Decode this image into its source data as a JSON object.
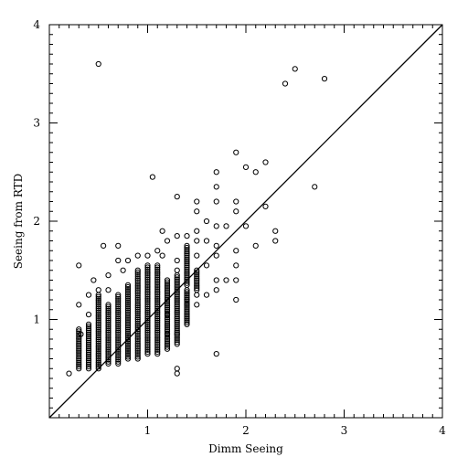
{
  "chart_data": {
    "type": "scatter",
    "title": "",
    "xlabel": "Dimm Seeing",
    "ylabel": "Seeing from RTD",
    "xlim": [
      0,
      4
    ],
    "ylim": [
      0,
      4
    ],
    "xticks": [
      1,
      2,
      3,
      4
    ],
    "yticks": [
      1,
      2,
      3,
      4
    ],
    "xtick_labels": [
      "1",
      "2",
      "3",
      "4"
    ],
    "ytick_labels": [
      "1",
      "2",
      "3",
      "4"
    ],
    "minor_tick_step": 0.1,
    "grid": false,
    "reference_line": {
      "x": [
        0,
        4
      ],
      "y": [
        0,
        4
      ]
    },
    "marker": "open-circle",
    "points": [
      [
        0.2,
        0.45
      ],
      [
        0.3,
        1.55
      ],
      [
        0.3,
        1.15
      ],
      [
        0.32,
        0.85
      ],
      [
        0.4,
        1.25
      ],
      [
        0.4,
        1.05
      ],
      [
        0.45,
        1.4
      ],
      [
        0.5,
        3.6
      ],
      [
        0.5,
        1.3
      ],
      [
        0.55,
        1.75
      ],
      [
        0.6,
        1.45
      ],
      [
        0.6,
        1.3
      ],
      [
        0.7,
        1.75
      ],
      [
        0.7,
        1.6
      ],
      [
        0.75,
        1.5
      ],
      [
        0.8,
        1.6
      ],
      [
        0.9,
        1.65
      ],
      [
        1.0,
        1.65
      ],
      [
        1.05,
        2.45
      ],
      [
        1.1,
        1.7
      ],
      [
        1.15,
        1.9
      ],
      [
        1.15,
        1.65
      ],
      [
        1.2,
        1.8
      ],
      [
        1.2,
        1.05
      ],
      [
        1.2,
        0.85
      ],
      [
        1.3,
        2.25
      ],
      [
        1.3,
        1.85
      ],
      [
        1.3,
        1.6
      ],
      [
        1.3,
        1.5
      ],
      [
        1.3,
        0.85
      ],
      [
        1.3,
        0.5
      ],
      [
        1.3,
        0.45
      ],
      [
        1.4,
        1.85
      ],
      [
        1.4,
        1.2
      ],
      [
        1.5,
        2.2
      ],
      [
        1.5,
        2.1
      ],
      [
        1.5,
        1.9
      ],
      [
        1.5,
        1.8
      ],
      [
        1.5,
        1.65
      ],
      [
        1.5,
        1.25
      ],
      [
        1.5,
        1.15
      ],
      [
        1.6,
        2.0
      ],
      [
        1.6,
        1.8
      ],
      [
        1.6,
        1.55
      ],
      [
        1.6,
        1.25
      ],
      [
        1.7,
        2.5
      ],
      [
        1.7,
        2.35
      ],
      [
        1.7,
        2.2
      ],
      [
        1.7,
        1.95
      ],
      [
        1.7,
        1.75
      ],
      [
        1.7,
        1.65
      ],
      [
        1.7,
        1.4
      ],
      [
        1.7,
        1.3
      ],
      [
        1.7,
        0.65
      ],
      [
        1.8,
        1.95
      ],
      [
        1.8,
        1.4
      ],
      [
        1.9,
        2.7
      ],
      [
        1.9,
        2.2
      ],
      [
        1.9,
        2.1
      ],
      [
        1.9,
        1.7
      ],
      [
        1.9,
        1.55
      ],
      [
        1.9,
        1.4
      ],
      [
        1.9,
        1.2
      ],
      [
        2.0,
        2.55
      ],
      [
        2.0,
        1.95
      ],
      [
        2.1,
        2.5
      ],
      [
        2.1,
        1.75
      ],
      [
        2.2,
        2.6
      ],
      [
        2.2,
        2.15
      ],
      [
        2.3,
        1.9
      ],
      [
        2.3,
        1.8
      ],
      [
        2.4,
        3.4
      ],
      [
        2.5,
        3.55
      ],
      [
        2.7,
        2.35
      ],
      [
        2.8,
        3.45
      ]
    ],
    "vertical_clusters": [
      {
        "x": 0.3,
        "y_min": 0.5,
        "y_max": 0.9
      },
      {
        "x": 0.4,
        "y_min": 0.5,
        "y_max": 0.95
      },
      {
        "x": 0.5,
        "y_min": 0.5,
        "y_max": 1.25
      },
      {
        "x": 0.6,
        "y_min": 0.55,
        "y_max": 1.15
      },
      {
        "x": 0.7,
        "y_min": 0.55,
        "y_max": 1.25
      },
      {
        "x": 0.8,
        "y_min": 0.6,
        "y_max": 1.35
      },
      {
        "x": 0.9,
        "y_min": 0.6,
        "y_max": 1.5
      },
      {
        "x": 1.0,
        "y_min": 0.65,
        "y_max": 1.55
      },
      {
        "x": 1.1,
        "y_min": 0.65,
        "y_max": 1.55
      },
      {
        "x": 1.2,
        "y_min": 0.7,
        "y_max": 1.4
      },
      {
        "x": 1.3,
        "y_min": 0.75,
        "y_max": 1.45
      },
      {
        "x": 1.4,
        "y_min": 1.35,
        "y_max": 1.75
      },
      {
        "x": 1.4,
        "y_min": 0.95,
        "y_max": 1.3
      },
      {
        "x": 1.5,
        "y_min": 1.3,
        "y_max": 1.5
      }
    ]
  }
}
